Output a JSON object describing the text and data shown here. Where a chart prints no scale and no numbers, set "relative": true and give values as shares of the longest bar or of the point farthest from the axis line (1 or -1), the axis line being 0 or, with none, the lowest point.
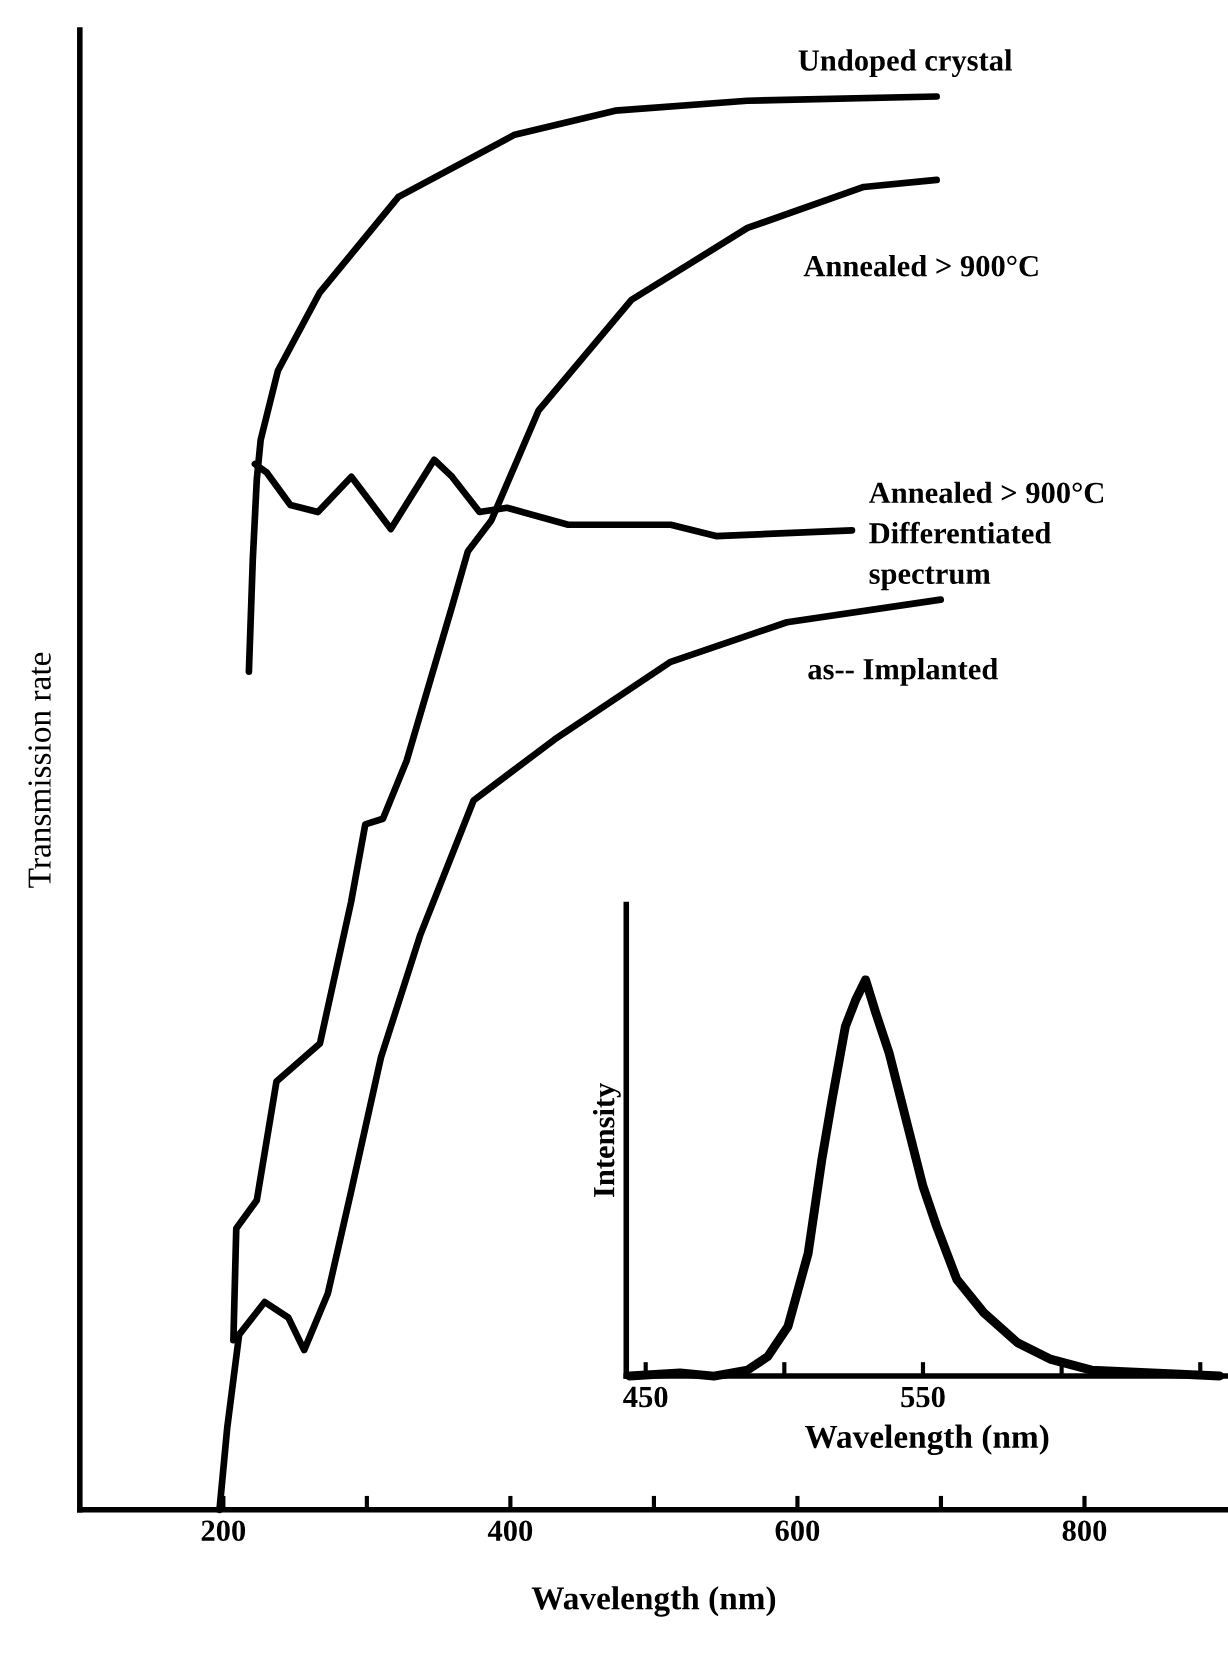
{
  "chart_data": [
    {
      "type": "line",
      "xlabel": "Wavelength (nm)",
      "ylabel": "Transmission rate",
      "relative": true,
      "xlim": [
        100,
        900
      ],
      "xticks": [
        200,
        {
          "value": 300,
          "label": null
        },
        400,
        {
          "value": 500,
          "label": null
        },
        600,
        {
          "value": 700,
          "label": null
        },
        800
      ],
      "grid": false,
      "legend": false,
      "marker": "none",
      "line_style": "solid",
      "tick_labels": "x",
      "series": [
        {
          "name": "Undoped crystal",
          "color": "#000000",
          "x": [
            217.8,
            220.5,
            223.3,
            226,
            238,
            267,
            322,
            403,
            473,
            565,
            697
          ],
          "values": [
            0.593,
            0.672,
            0.729,
            0.757,
            0.806,
            0.861,
            0.929,
            0.973,
            0.99,
            0.997,
            1.0
          ]
        },
        {
          "name": "Annealed > 900°C",
          "color": "#000000",
          "x": [
            207,
            209,
            223.3,
            237,
            267.3,
            289,
            298.9,
            311.2,
            327.7,
            359.3,
            370.3,
            386.7,
            419.7,
            484.2,
            565.2,
            646.2,
            697
          ],
          "values": [
            0.12,
            0.199,
            0.219,
            0.303,
            0.33,
            0.43,
            0.485,
            0.489,
            0.53,
            0.639,
            0.678,
            0.7,
            0.778,
            0.856,
            0.907,
            0.936,
            0.941
          ]
        },
        {
          "name": "Annealed > 900°C\nDifferentiated\nspectrum",
          "color": "#000000",
          "x": [
            222,
            230.2,
            246.7,
            265.9,
            289.2,
            316.7,
            346.9,
            359.3,
            378.5,
            397.7,
            440.3,
            511.7,
            543.3,
            638
          ],
          "values": [
            0.74,
            0.734,
            0.711,
            0.706,
            0.731,
            0.694,
            0.743,
            0.731,
            0.706,
            0.709,
            0.697,
            0.697,
            0.689,
            0.693
          ]
        },
        {
          "name": "as-- Implanted",
          "color": "#000000",
          "x": [
            197.3,
            202.7,
            211,
            228.8,
            245.3,
            256.3,
            272.8,
            289,
            309.8,
            337.3,
            374.4,
            430.7,
            511.7,
            592.7,
            699.8
          ],
          "values": [
            0,
            0.058,
            0.124,
            0.147,
            0.136,
            0.113,
            0.153,
            0.225,
            0.32,
            0.407,
            0.502,
            0.545,
            0.6,
            0.628,
            0.644
          ]
        }
      ]
    },
    {
      "type": "line",
      "xlabel": "Wavelength (nm)",
      "ylabel": "Intensity",
      "relative": true,
      "xlim": [
        443,
        660
      ],
      "xticks": [
        450,
        {
          "value": 500,
          "label": null
        },
        550,
        {
          "value": 600,
          "label": null
        },
        {
          "value": 650,
          "label": null
        }
      ],
      "grid": false,
      "legend": false,
      "marker": "none",
      "line_style": "solid",
      "tick_labels": "x",
      "series": [
        {
          "color": "#000000",
          "x": [
            444.2,
            462.4,
            474.6,
            486.7,
            494,
            501.3,
            508.6,
            513.5,
            517.2,
            522,
            525.7,
            529.3,
            533,
            537.8,
            545.1,
            550,
            554.9,
            562.2,
            571.9,
            584.1,
            596.2,
            610.8,
            632.7,
            657
          ],
          "values": [
            0,
            0.008,
            0,
            0.015,
            0.049,
            0.125,
            0.31,
            0.545,
            0.697,
            0.882,
            0.949,
            1.0,
            0.916,
            0.815,
            0.614,
            0.479,
            0.378,
            0.244,
            0.16,
            0.084,
            0.042,
            0.015,
            0.008,
            0
          ]
        }
      ]
    }
  ]
}
